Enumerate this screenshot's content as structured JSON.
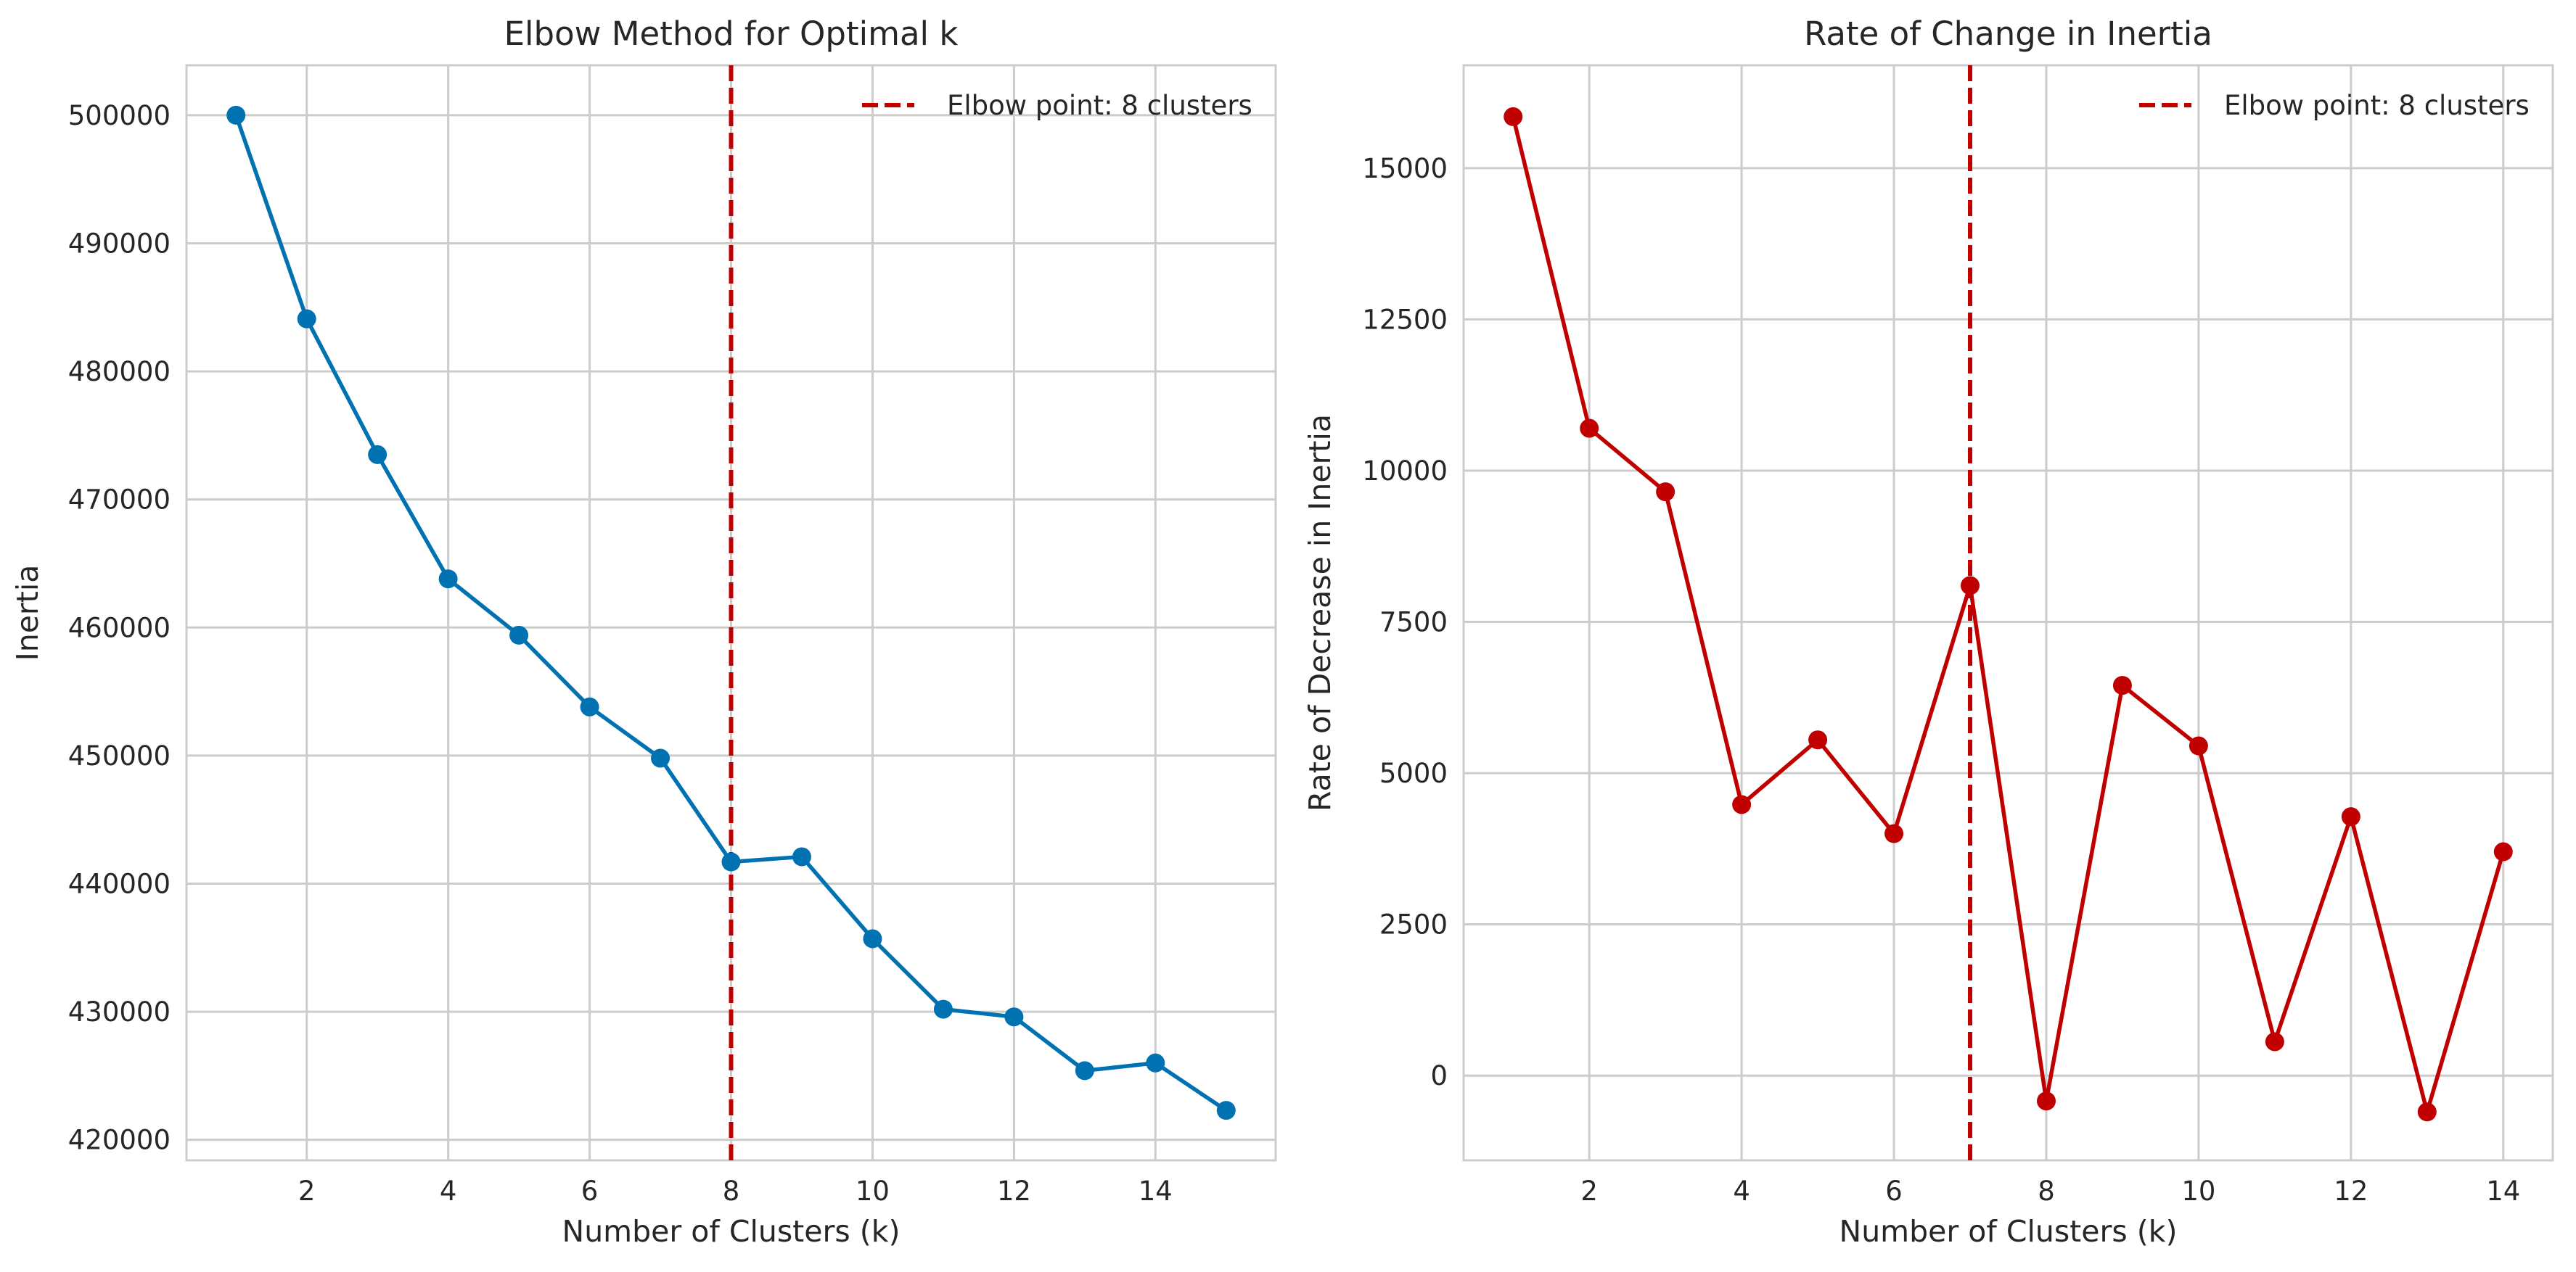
{
  "chart_data": [
    {
      "type": "line",
      "title": "Elbow Method for Optimal k",
      "xlabel": "Number of Clusters (k)",
      "ylabel": "Inertia",
      "xlim": [
        0.3,
        15.7
      ],
      "ylim": [
        418400,
        503900
      ],
      "x_ticks": [
        2,
        4,
        6,
        8,
        10,
        12,
        14
      ],
      "y_ticks": [
        420000,
        430000,
        440000,
        450000,
        460000,
        470000,
        480000,
        490000,
        500000
      ],
      "x_tick_labels": [
        "2",
        "4",
        "6",
        "8",
        "10",
        "12",
        "14"
      ],
      "y_tick_labels": [
        "420000",
        "430000",
        "440000",
        "450000",
        "460000",
        "470000",
        "480000",
        "490000",
        "500000"
      ],
      "grid": true,
      "legend_position": "top-right",
      "series": [
        {
          "color": "#0072B2",
          "marker": "circle",
          "x": [
            1,
            2,
            3,
            4,
            5,
            6,
            7,
            8,
            9,
            10,
            11,
            12,
            13,
            14,
            15
          ],
          "y": [
            500000,
            484100,
            473500,
            463800,
            459400,
            453800,
            449800,
            441700,
            442100,
            435700,
            430200,
            429600,
            425400,
            426000,
            422300
          ]
        }
      ],
      "vline": {
        "x": 8,
        "label": "Elbow point: 8 clusters",
        "color": "#C00000",
        "style": "dashed"
      }
    },
    {
      "type": "line",
      "title": "Rate of Change in Inertia",
      "xlabel": "Number of Clusters (k)",
      "ylabel": "Rate of Decrease in Inertia",
      "xlim": [
        0.35,
        14.65
      ],
      "ylim": [
        -1400,
        16700
      ],
      "x_ticks": [
        2,
        4,
        6,
        8,
        10,
        12,
        14
      ],
      "y_ticks": [
        0,
        2500,
        5000,
        7500,
        10000,
        12500,
        15000
      ],
      "x_tick_labels": [
        "2",
        "4",
        "6",
        "8",
        "10",
        "12",
        "14"
      ],
      "y_tick_labels": [
        "0",
        "2500",
        "5000",
        "7500",
        "10000",
        "12500",
        "15000"
      ],
      "grid": true,
      "legend_position": "top-right",
      "series": [
        {
          "color": "#C00000",
          "marker": "circle",
          "x": [
            1,
            2,
            3,
            4,
            5,
            6,
            7,
            8,
            9,
            10,
            11,
            12,
            13,
            14
          ],
          "y": [
            15850,
            10700,
            9650,
            4480,
            5550,
            4000,
            8100,
            -420,
            6450,
            5450,
            560,
            4280,
            -600,
            3700
          ]
        }
      ],
      "vline": {
        "x": 7,
        "label": "Elbow point: 8 clusters",
        "color": "#C00000",
        "style": "dashed"
      }
    }
  ]
}
